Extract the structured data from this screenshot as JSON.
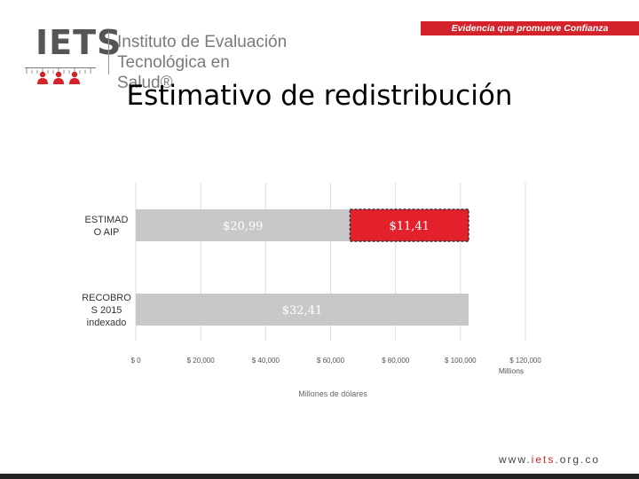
{
  "brand": {
    "acronym": "IETS",
    "name_line1": "Instituto de Evaluación",
    "name_line2": "Tecnológica en Salud®",
    "tagline": "Evidencia que promueve Confianza",
    "url_prefix": "www.",
    "url_brand": "iets",
    "url_suffix": ".org.co",
    "accent_color": "#d3222a"
  },
  "slide": {
    "title": "Estimativo de redistribución"
  },
  "chart_data": {
    "type": "bar",
    "orientation": "horizontal",
    "stacked": true,
    "categories": [
      "ESTIMADO AIP",
      "RECOBROS 2015 indexado"
    ],
    "category_lines": [
      [
        "ESTIMAD",
        "O AIP"
      ],
      [
        "RECOBRO",
        "S 2015",
        "indexado"
      ]
    ],
    "series": [
      {
        "values": [
          66000,
          102500
        ],
        "labels": [
          "$20,99",
          "$32,41"
        ],
        "color": "#c8c8c8"
      },
      {
        "values": [
          36500,
          0
        ],
        "labels": [
          "$11,41",
          ""
        ],
        "color": "#e3212b"
      }
    ],
    "xlim": [
      0,
      120000
    ],
    "x_ticks": [
      0,
      20000,
      40000,
      60000,
      80000,
      100000,
      120000
    ],
    "x_tick_labels": [
      "$ 0",
      "$ 20,000",
      "$ 40,000",
      "$ 60,000",
      "$ 80,000",
      "$ 100,000",
      "$ 120,000"
    ],
    "x_unit_label": "Millions",
    "xlabel": "Millones de dólares",
    "grid": true
  }
}
